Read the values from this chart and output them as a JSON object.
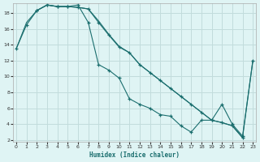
{
  "xlabel": "Humidex (Indice chaleur)",
  "bg_color": "#dff4f4",
  "grid_color": "#c2dcdc",
  "line_color": "#1a6e6e",
  "xlim": [
    -0.3,
    23.3
  ],
  "ylim": [
    1.8,
    19.2
  ],
  "line1_x": [
    0,
    1,
    2,
    3,
    4,
    5,
    6,
    7,
    8,
    9,
    10,
    11,
    12,
    13,
    14,
    15,
    16,
    17,
    18,
    19,
    20,
    21,
    22
  ],
  "line1_y": [
    13.5,
    16.5,
    18.3,
    19.0,
    18.8,
    18.8,
    18.7,
    18.5,
    16.8,
    15.2,
    13.7,
    13.0,
    11.5,
    10.5,
    9.5,
    8.5,
    7.5,
    6.5,
    5.5,
    4.5,
    4.2,
    3.8,
    2.3
  ],
  "line2_x": [
    0,
    1,
    2,
    3,
    4,
    5,
    6,
    7,
    8,
    9,
    10,
    11,
    12,
    13,
    14,
    15,
    16,
    17,
    18,
    19,
    20,
    21,
    22,
    23
  ],
  "line2_y": [
    13.5,
    16.8,
    18.3,
    19.0,
    18.8,
    18.8,
    18.7,
    18.5,
    17.0,
    15.3,
    13.8,
    13.0,
    11.5,
    10.5,
    9.5,
    8.5,
    7.5,
    6.5,
    5.5,
    4.5,
    4.2,
    3.8,
    2.3,
    12.0
  ],
  "line3_x": [
    2,
    3,
    4,
    5,
    6,
    7,
    8,
    9,
    10,
    11,
    12,
    13,
    14,
    15,
    16,
    17,
    18,
    19,
    20,
    21,
    22,
    23
  ],
  "line3_y": [
    18.3,
    19.0,
    18.8,
    18.8,
    19.0,
    16.8,
    11.5,
    10.8,
    9.8,
    7.2,
    6.5,
    6.0,
    5.2,
    5.0,
    3.8,
    3.0,
    4.5,
    4.5,
    6.5,
    4.0,
    2.5,
    12.0
  ],
  "yticks": [
    2,
    4,
    6,
    8,
    10,
    12,
    14,
    16,
    18
  ],
  "xticks": [
    0,
    1,
    2,
    3,
    4,
    5,
    6,
    7,
    8,
    9,
    10,
    11,
    12,
    13,
    14,
    15,
    16,
    17,
    18,
    19,
    20,
    21,
    22,
    23
  ]
}
